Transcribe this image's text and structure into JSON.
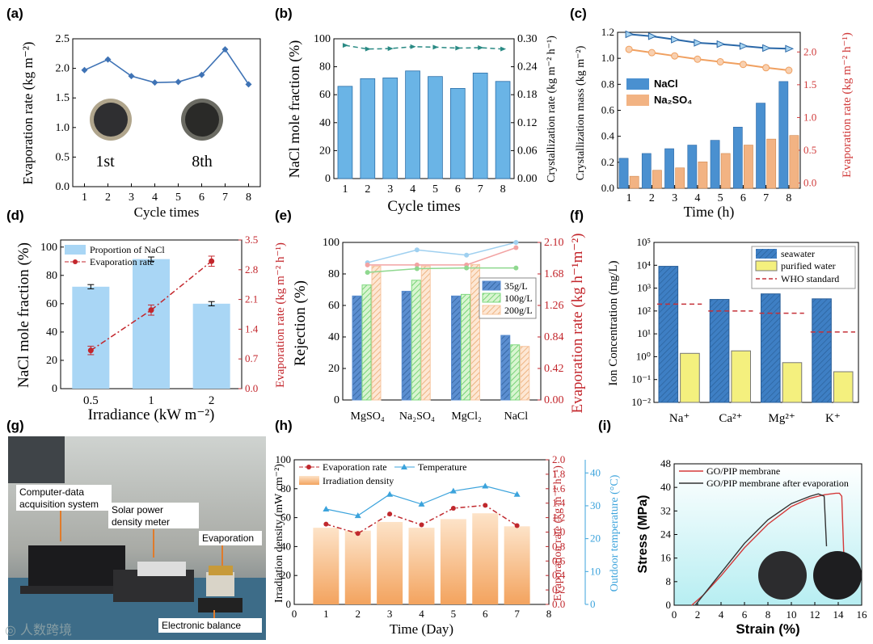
{
  "watermark": "◎ 人数跨境",
  "chart_data": [
    {
      "panel": "(a)",
      "type": "line",
      "xlabel": "Cycle times",
      "ylabel": "Evaporation rate (kg m⁻²)",
      "x": [
        1,
        2,
        3,
        4,
        5,
        6,
        7,
        8
      ],
      "ylim": [
        0,
        2.5
      ],
      "yticks": [
        "0.0",
        "0.5",
        "1.0",
        "1.5",
        "2.0",
        "2.5"
      ],
      "series": [
        {
          "values": [
            1.97,
            2.15,
            1.87,
            1.76,
            1.77,
            1.89,
            2.32,
            1.73
          ],
          "color": "#3f73b5"
        }
      ],
      "annotations": [
        "1st",
        "8th"
      ]
    },
    {
      "panel": "(b)",
      "type": "bar",
      "xlabel": "Cycle times",
      "ylabel": "NaCl mole fraction (%)",
      "y2label": "Crystallization rate (kg m⁻² h⁻¹)",
      "categories": [
        "1",
        "2",
        "3",
        "4",
        "5",
        "6",
        "7",
        "8"
      ],
      "ylim": [
        0,
        100
      ],
      "y2lim": [
        0,
        0.3
      ],
      "yticks": [
        "0",
        "20",
        "40",
        "60",
        "80",
        "100"
      ],
      "y2ticks": [
        "0.00",
        "0.06",
        "0.12",
        "0.18",
        "0.24",
        "0.30"
      ],
      "series": [
        {
          "values": [
            66,
            71.5,
            72,
            77,
            73,
            64.5,
            75.5,
            69.5
          ],
          "color": "#6ab4e6"
        },
        {
          "values": [
            0.286,
            0.278,
            0.279,
            0.283,
            0.282,
            0.28,
            0.281,
            0.278
          ],
          "axis": "right",
          "color": "#2a8a84"
        }
      ]
    },
    {
      "panel": "(c)",
      "type": "bar",
      "xlabel": "Time (h)",
      "ylabel": "Crystallization mass (kg m⁻²)",
      "y2label": "Evaporation rate (kg m⁻² h⁻¹)",
      "categories": [
        "1",
        "2",
        "3",
        "4",
        "5",
        "6",
        "7",
        "8"
      ],
      "ylim": [
        0,
        1.3
      ],
      "y2lim": [
        -0.08,
        2.3
      ],
      "yticks": [
        "0.0",
        "0.2",
        "0.4",
        "0.6",
        "0.8",
        "1.0",
        "1.2"
      ],
      "y2ticks": [
        "0.0",
        "0.5",
        "1.0",
        "1.5",
        "2.0"
      ],
      "series": [
        {
          "name": "NaCl",
          "values": [
            0.25,
            0.29,
            0.33,
            0.36,
            0.4,
            0.51,
            0.71,
            0.89
          ],
          "color": "#4a90d0"
        },
        {
          "name": "Na₂SO₄",
          "values": [
            0.1,
            0.15,
            0.17,
            0.22,
            0.29,
            0.36,
            0.41,
            0.44
          ],
          "color": "#f2b383"
        },
        {
          "values": [
            2.27,
            2.24,
            2.19,
            2.14,
            2.12,
            2.09,
            2.06,
            2.05
          ],
          "axis": "right",
          "color": "#2a68a8"
        },
        {
          "values": [
            2.04,
            1.99,
            1.94,
            1.89,
            1.85,
            1.81,
            1.76,
            1.72
          ],
          "axis": "right",
          "color": "#f0a060"
        }
      ]
    },
    {
      "panel": "(d)",
      "type": "bar",
      "xlabel": "Irradiance (kW m⁻²)",
      "ylabel": "NaCl mole fraction (%)",
      "y2label": "Evaporation rate (kg m⁻² h⁻¹)",
      "categories": [
        "0.5",
        "1",
        "2"
      ],
      "ylim": [
        0,
        105
      ],
      "y2lim": [
        0,
        3.5
      ],
      "yticks": [
        "0",
        "20",
        "40",
        "60",
        "80",
        "100"
      ],
      "y2ticks": [
        "0.0",
        "0.7",
        "1.4",
        "2.1",
        "2.8",
        "3.5"
      ],
      "series": [
        {
          "name": "Proportion of NaCl",
          "values": [
            72,
            91.5,
            60
          ],
          "errors": [
            1.5,
            1.5,
            1.5
          ],
          "color": "#a9d6f5"
        },
        {
          "name": "Evaporation rate",
          "values": [
            0.9,
            1.85,
            3.0
          ],
          "errors": [
            0.1,
            0.12,
            0.12
          ],
          "axis": "right",
          "color": "#c3262c"
        }
      ]
    },
    {
      "panel": "(e)",
      "type": "bar",
      "ylabel": "Rejection (%)",
      "y2label": "Evaporation rate (kg h⁻¹m⁻²)",
      "categories": [
        "MgSO₄",
        "Na₂SO₄",
        "MgCl₂",
        "NaCl"
      ],
      "ylim": [
        0,
        100
      ],
      "y2lim": [
        0,
        2.1
      ],
      "yticks": [
        "0",
        "20",
        "40",
        "60",
        "80",
        "100"
      ],
      "y2ticks": [
        "0.00",
        "0.42",
        "0.84",
        "1.26",
        "1.68",
        "2.10"
      ],
      "series": [
        {
          "name": "35g/L",
          "values": [
            66,
            69,
            66,
            41
          ],
          "color": "#5b8ed0"
        },
        {
          "name": "100g/L",
          "values": [
            73,
            76,
            67,
            35
          ],
          "color": "#7ed87e"
        },
        {
          "name": "200g/L",
          "values": [
            85,
            85,
            86,
            34
          ],
          "color": "#f7c59f"
        },
        {
          "values": [
            1.83,
            2.0,
            1.93,
            2.1
          ],
          "axis": "right",
          "color": "#9fd0f0"
        },
        {
          "values": [
            1.8,
            1.8,
            1.8,
            2.03
          ],
          "axis": "right",
          "color": "#f2a3a3"
        },
        {
          "values": [
            1.7,
            1.75,
            1.76,
            1.76
          ],
          "axis": "right",
          "color": "#8fd88f"
        }
      ]
    },
    {
      "panel": "(f)",
      "type": "bar",
      "yscale": "log",
      "ylabel": "Ion Concentration (mg/L)",
      "categories": [
        "Na⁺",
        "Ca²⁺",
        "Mg²⁺",
        "K⁺"
      ],
      "ylim": [
        0.01,
        100000
      ],
      "yticks": [
        "10⁻²",
        "10⁻¹",
        "10⁰",
        "10¹",
        "10²",
        "10³",
        "10⁴",
        "10⁵"
      ],
      "series": [
        {
          "name": "seawater",
          "values": [
            9000,
            320,
            560,
            340
          ],
          "color": "#3e7fc4"
        },
        {
          "name": "purified water",
          "values": [
            1.4,
            1.8,
            0.55,
            0.22
          ],
          "color": "#f4f07e"
        },
        {
          "name": "WHO standard",
          "values": [
            200,
            100,
            80,
            12
          ],
          "color": "#c53038"
        }
      ]
    },
    {
      "panel": "(h)",
      "type": "bar",
      "xlabel": "Time (Day)",
      "ylabel": "Irradiation density (mW cm⁻²)",
      "y2label": "Evaporation rate (kg m⁻² h⁻¹)",
      "y3label": "Outdoor temperature (°C)",
      "categories": [
        "1",
        "2",
        "3",
        "4",
        "5",
        "6",
        "7"
      ],
      "xlim": [
        0,
        8
      ],
      "ylim": [
        0,
        100
      ],
      "y2lim": [
        0,
        2.0
      ],
      "y3lim": [
        0,
        44
      ],
      "yticks": [
        "0",
        "20",
        "40",
        "60",
        "80",
        "100"
      ],
      "y2ticks": [
        "0.0",
        "0.2",
        "0.4",
        "0.6",
        "0.8",
        "1.0",
        "1.2",
        "1.4",
        "1.6",
        "1.8",
        "2.0"
      ],
      "y3ticks": [
        "0",
        "10",
        "20",
        "30",
        "40"
      ],
      "series": [
        {
          "name": "Irradiation density",
          "values": [
            53,
            51,
            57,
            53,
            59,
            63,
            54
          ],
          "color": "#f5b070"
        },
        {
          "name": "Evaporation rate",
          "values": [
            1.11,
            0.98,
            1.25,
            1.1,
            1.33,
            1.37,
            1.09
          ],
          "axis": "right",
          "color": "#c0282d"
        },
        {
          "name": "Temperature",
          "values": [
            29,
            27,
            33.5,
            30.5,
            34.5,
            36,
            33.5
          ],
          "axis": "right2",
          "color": "#3ba3dc"
        }
      ]
    },
    {
      "panel": "(i)",
      "type": "line",
      "xlabel": "Strain (%)",
      "ylabel": "Stress (MPa)",
      "xlim": [
        0,
        16
      ],
      "ylim": [
        0,
        48
      ],
      "xticks": [
        "0",
        "2",
        "4",
        "6",
        "8",
        "10",
        "12",
        "14",
        "16"
      ],
      "yticks": [
        "0",
        "8",
        "16",
        "24",
        "32",
        "40",
        "48"
      ],
      "series": [
        {
          "name": "GO/PIP membrane",
          "x": [
            1.5,
            2.5,
            4,
            6,
            8,
            10,
            11.5,
            12.8,
            13.8,
            14.1,
            14.3,
            14.5
          ],
          "values": [
            0,
            3.5,
            10,
            19.5,
            27.5,
            33.5,
            36.2,
            37.5,
            38,
            38,
            37,
            14
          ],
          "color": "#d43a3a"
        },
        {
          "name": "GO/PIP membrane after evaporation",
          "x": [
            1.8,
            2.6,
            4,
            6,
            8,
            10,
            11.6,
            12.3,
            12.8,
            13.0
          ],
          "values": [
            0,
            4,
            11,
            21,
            29,
            34.5,
            37,
            37.8,
            37,
            20
          ],
          "color": "#333333"
        }
      ]
    }
  ],
  "photo_g": {
    "panel": "(g)",
    "labels": [
      "Computer-data acquisition system",
      "Solar power density meter",
      "Evaporation",
      "Electronic balance"
    ]
  }
}
